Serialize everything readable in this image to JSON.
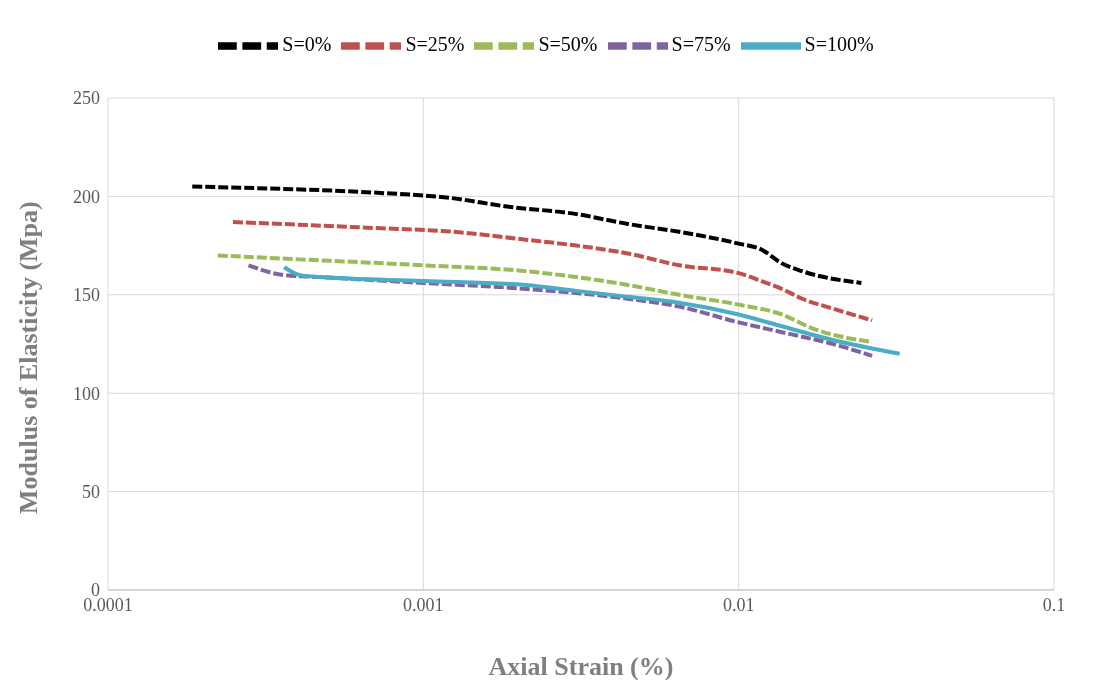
{
  "chart_data": {
    "type": "line",
    "xlabel": "Axial Strain (%)",
    "ylabel": "Modulus of Elasticity (Mpa)",
    "log": "x",
    "xlim": [
      0.0001,
      0.1
    ],
    "xticks": [
      0.0001,
      0.001,
      0.01,
      0.1
    ],
    "ylim": [
      0,
      250
    ],
    "yticks": [
      0,
      50,
      100,
      150,
      200,
      250
    ],
    "grid": true,
    "legend": "top",
    "marker": "none",
    "series": [
      {
        "name": "S=0%",
        "color": "#000000",
        "line_style": "dashed",
        "x": [
          0.000185,
          0.000324,
          0.000686,
          0.00125,
          0.00181,
          0.00306,
          0.00445,
          0.00648,
          0.01,
          0.0118,
          0.0137,
          0.0159,
          0.0245
        ],
        "values": [
          205,
          204,
          202,
          199,
          195,
          191,
          186,
          182,
          176,
          173,
          166,
          162,
          156
        ]
      },
      {
        "name": "S=25%",
        "color": "#c0504d",
        "line_style": "dashed",
        "x": [
          0.000249,
          0.000686,
          0.00125,
          0.00211,
          0.00306,
          0.00445,
          0.00648,
          0.01,
          0.0118,
          0.0137,
          0.0159,
          0.0199,
          0.0265
        ],
        "values": [
          187,
          184,
          182,
          178,
          175,
          171,
          165,
          161,
          157,
          153,
          148,
          143,
          137
        ]
      },
      {
        "name": "S=50%",
        "color": "#9bbb59",
        "line_style": "dashed",
        "x": [
          0.000223,
          0.000406,
          0.001,
          0.00211,
          0.00445,
          0.00648,
          0.01,
          0.0137,
          0.0171,
          0.0265
        ],
        "values": [
          170,
          168,
          165,
          162,
          155,
          150,
          145,
          140,
          133,
          126
        ]
      },
      {
        "name": "S=75%",
        "color": "#8064a2",
        "line_style": "dashed",
        "x": [
          0.000279,
          0.000362,
          0.000471,
          0.001,
          0.00211,
          0.00445,
          0.00648,
          0.01,
          0.0137,
          0.0199,
          0.0265
        ],
        "values": [
          165,
          160,
          159,
          156,
          153,
          148,
          144,
          136,
          131,
          125,
          119
        ]
      },
      {
        "name": "S=100%",
        "color": "#4bacc6",
        "line_style": "solid",
        "x": [
          0.000362,
          0.000406,
          0.000471,
          0.001,
          0.00211,
          0.00306,
          0.00445,
          0.00648,
          0.01,
          0.0137,
          0.0199,
          0.0324
        ],
        "values": [
          164,
          160,
          159,
          157,
          155,
          152,
          149,
          146,
          140,
          134,
          127,
          120
        ]
      }
    ]
  }
}
